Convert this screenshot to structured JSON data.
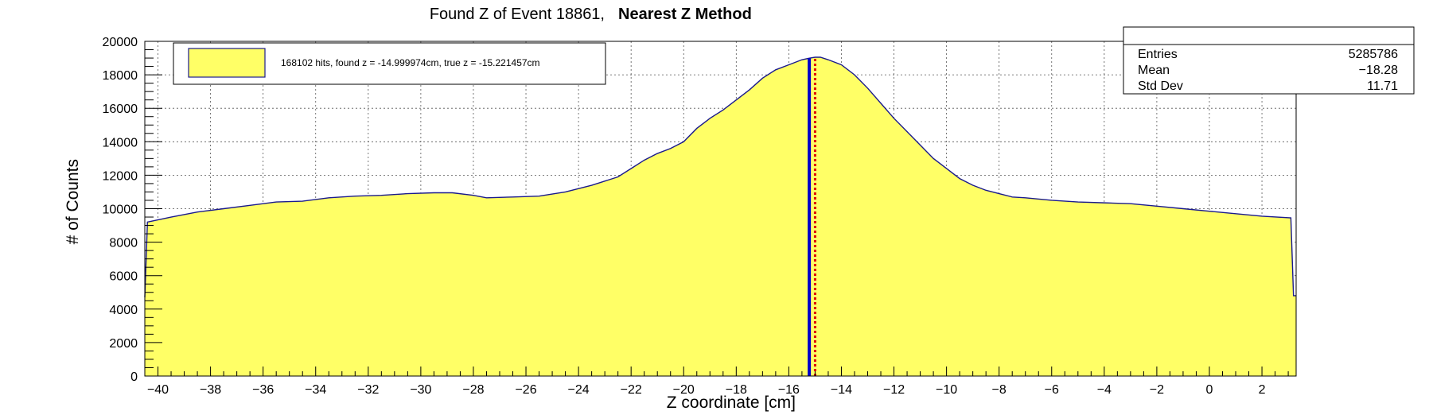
{
  "title": {
    "main": "Found Z of Event 18861,",
    "method": "Nearest Z Method"
  },
  "legend": {
    "label": "168102 hits, found z = -14.999974cm, true z = -15.221457cm"
  },
  "stats": {
    "rows": [
      {
        "label": "Entries",
        "value": "5285786"
      },
      {
        "label": "Mean",
        "value": "−18.28"
      },
      {
        "label": "Std Dev",
        "value": "11.71"
      }
    ]
  },
  "chart_data": {
    "type": "area",
    "title": "Found Z of Event 18861, Nearest Z Method",
    "xlabel": "Z coordinate [cm]",
    "ylabel": "# of Counts",
    "xlim": [
      -40.5,
      3.3
    ],
    "ylim": [
      0,
      20000
    ],
    "x_ticks": [
      -40,
      -38,
      -36,
      -34,
      -32,
      -30,
      -28,
      -26,
      -24,
      -22,
      -20,
      -18,
      -16,
      -14,
      -12,
      -10,
      -8,
      -6,
      -4,
      -2,
      0,
      2
    ],
    "x_tick_labels": [
      "−40",
      "−38",
      "−36",
      "−34",
      "−32",
      "−30",
      "−28",
      "−26",
      "−24",
      "−22",
      "−20",
      "−18",
      "−16",
      "−14",
      "−12",
      "−10",
      "−8",
      "−6",
      "−4",
      "−2",
      "0",
      "2"
    ],
    "y_ticks": [
      0,
      2000,
      4000,
      6000,
      8000,
      10000,
      12000,
      14000,
      16000,
      18000,
      20000
    ],
    "y_tick_labels": [
      "0",
      "2000",
      "4000",
      "6000",
      "8000",
      "10000",
      "12000",
      "14000",
      "16000",
      "18000",
      "20000"
    ],
    "grid": true,
    "fill_color": "#ffff66",
    "line_color": "#1a1a8c",
    "series": [
      {
        "name": "168102 hits, found z = -14.999974cm, true z = -15.221457cm",
        "x": [
          -40.5,
          -40.4,
          -39.5,
          -38.5,
          -37.5,
          -36.5,
          -35.5,
          -34.5,
          -33.5,
          -32.5,
          -31.5,
          -30.5,
          -29.5,
          -28.8,
          -28.0,
          -27.5,
          -26.5,
          -25.5,
          -24.5,
          -23.5,
          -22.5,
          -22.0,
          -21.5,
          -21.0,
          -20.5,
          -20.0,
          -19.5,
          -19.0,
          -18.5,
          -18.0,
          -17.5,
          -17.0,
          -16.5,
          -16.0,
          -15.5,
          -15.2,
          -15.0,
          -14.8,
          -14.5,
          -14.0,
          -13.5,
          -13.0,
          -12.5,
          -12.0,
          -11.5,
          -11.0,
          -10.5,
          -10.0,
          -9.5,
          -9.0,
          -8.5,
          -8.0,
          -7.5,
          -7.0,
          -6.0,
          -5.0,
          -4.0,
          -3.0,
          -2.0,
          -1.0,
          0.0,
          1.0,
          2.0,
          3.1,
          3.2,
          3.3
        ],
        "y": [
          4700,
          9200,
          9500,
          9800,
          10000,
          10200,
          10400,
          10450,
          10650,
          10750,
          10800,
          10900,
          10950,
          10950,
          10800,
          10650,
          10700,
          10750,
          11000,
          11400,
          11900,
          12400,
          12900,
          13300,
          13600,
          14000,
          14800,
          15400,
          15900,
          16500,
          17100,
          17800,
          18300,
          18600,
          18900,
          19000,
          19050,
          19050,
          18900,
          18600,
          18000,
          17200,
          16300,
          15400,
          14600,
          13800,
          13000,
          12400,
          11800,
          11400,
          11100,
          10900,
          10700,
          10650,
          10500,
          10400,
          10350,
          10300,
          10150,
          10000,
          9850,
          9700,
          9550,
          9450,
          4800,
          4800
        ]
      }
    ],
    "markers": [
      {
        "name": "true z",
        "x": -15.221457,
        "color": "#0000cc",
        "style": "solid"
      },
      {
        "name": "found z",
        "x": -14.999974,
        "color": "#dd0000",
        "style": "dotted"
      }
    ]
  }
}
